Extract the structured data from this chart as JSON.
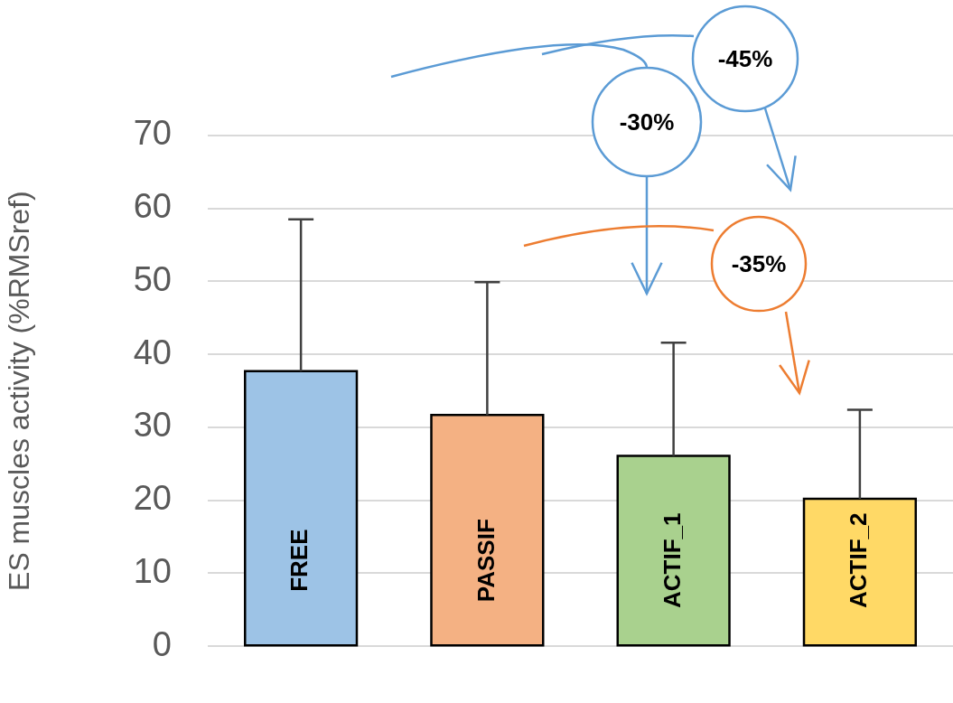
{
  "chart_data": {
    "type": "bar",
    "ylabel": "ES muscles activity (%RMSref)",
    "categories": [
      "FREE",
      "PASSIF",
      "ACTIF_1",
      "ACTIF_2"
    ],
    "values": [
      37.7,
      31.7,
      26.1,
      20.2
    ],
    "colors": [
      "#9dc3e6",
      "#f4b183",
      "#a9d18e",
      "#ffd966"
    ],
    "errors": [
      [
        37.7,
        58.5
      ],
      [
        31.7,
        49.9
      ],
      [
        26.1,
        41.6
      ],
      [
        20.2,
        32.4
      ]
    ],
    "ylim": [
      0,
      70
    ],
    "yticks": [
      0,
      10,
      20,
      30,
      40,
      50,
      60,
      70
    ],
    "grid": "y",
    "legend": false,
    "annotations": [
      "-30%",
      "-45%",
      "-35%"
    ]
  }
}
